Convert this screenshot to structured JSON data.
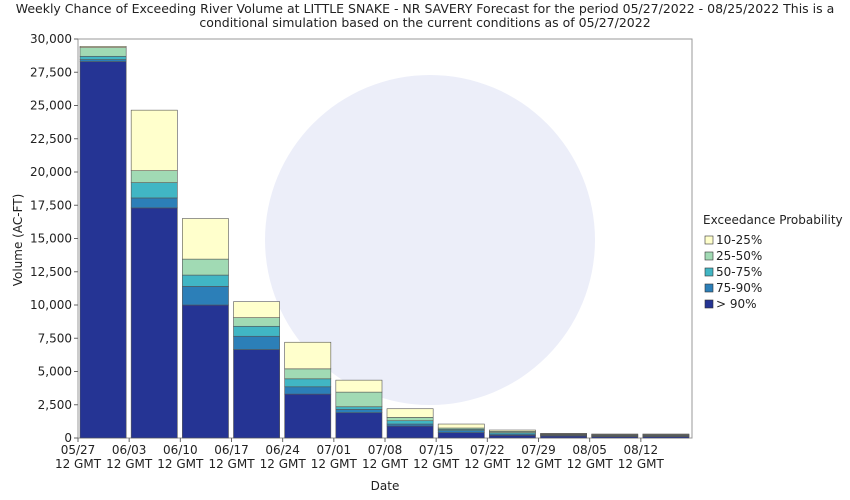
{
  "chart_data": {
    "type": "stacked_bar",
    "title": [
      "Weekly Chance of Exceeding River Volume at LITTLE SNAKE - NR SAVERY Forecast for the period 05/27/2022 - 08/25/2022 This is a",
      "conditional simulation based on the current conditions as of 05/27/2022"
    ],
    "x_label": "Date",
    "y_label": "Volume (AC-FT)",
    "legend_title": "Exceedance Probability",
    "legend_position": "right",
    "categories": [
      "05/27 12 GMT",
      "06/03 12 GMT",
      "06/10 12 GMT",
      "06/17 12 GMT",
      "06/24 12 GMT",
      "07/01 12 GMT",
      "07/08 12 GMT",
      "07/15 12 GMT",
      "07/22 12 GMT",
      "07/29 12 GMT",
      "08/05 12 GMT",
      "08/12 12 GMT"
    ],
    "series": [
      {
        "name": "> 90%",
        "color": "#253494",
        "values": [
          28300,
          17300,
          10000,
          6650,
          3300,
          1900,
          900,
          400,
          200,
          150,
          100,
          100
        ]
      },
      {
        "name": "75-90%",
        "color": "#2c7fb8",
        "values": [
          150,
          750,
          1400,
          1000,
          550,
          250,
          150,
          150,
          100,
          50,
          50,
          50
        ]
      },
      {
        "name": "50-75%",
        "color": "#41b6c4",
        "values": [
          250,
          1150,
          850,
          750,
          600,
          200,
          250,
          100,
          100,
          50,
          50,
          50
        ]
      },
      {
        "name": "25-50%",
        "color": "#a1dab4",
        "values": [
          650,
          900,
          1200,
          650,
          750,
          1100,
          250,
          100,
          100,
          50,
          50,
          50
        ]
      },
      {
        "name": "10-25%",
        "color": "#ffffcc",
        "values": [
          100,
          4550,
          3050,
          1200,
          2000,
          900,
          650,
          300,
          100,
          50,
          50,
          50
        ]
      }
    ],
    "ylim": [
      0,
      30000
    ],
    "yticks": [
      0,
      {
        "value": 2500,
        "label": "2,500"
      },
      {
        "value": 5000,
        "label": "5,000"
      },
      {
        "value": 7500,
        "label": "7,500"
      },
      {
        "value": 10000,
        "label": "10,000"
      },
      {
        "value": 12500,
        "label": "12,500"
      },
      {
        "value": 15000,
        "label": "15,000"
      },
      {
        "value": 17500,
        "label": "17,500"
      },
      {
        "value": 20000,
        "label": "20,000"
      },
      {
        "value": 22500,
        "label": "22,500"
      },
      {
        "value": 25000,
        "label": "25,000"
      },
      {
        "value": 27500,
        "label": "27,500"
      },
      {
        "value": 30000,
        "label": "30,000"
      }
    ],
    "grid": false
  }
}
